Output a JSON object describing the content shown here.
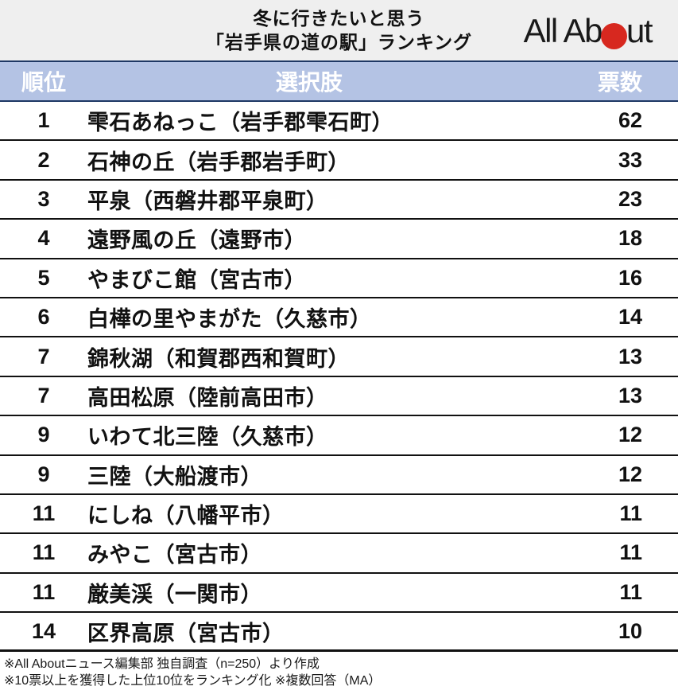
{
  "banner": {
    "title_line1": "冬に行きたいと思う",
    "title_line2": "「岩手県の道の駅」ランキング",
    "logo": {
      "text_left": "All Ab",
      "text_right": "ut",
      "dot_icon": "red-circle",
      "dot_color": "#d7281f"
    }
  },
  "table": {
    "columns": [
      "順位",
      "選択肢",
      "票数"
    ],
    "rows": [
      {
        "rank": "1",
        "name": "雫石あねっこ（岩手郡雫石町）",
        "votes": "62"
      },
      {
        "rank": "2",
        "name": "石神の丘（岩手郡岩手町）",
        "votes": "33"
      },
      {
        "rank": "3",
        "name": "平泉（西磐井郡平泉町）",
        "votes": "23"
      },
      {
        "rank": "4",
        "name": "遠野風の丘（遠野市）",
        "votes": "18"
      },
      {
        "rank": "5",
        "name": "やまびこ館（宮古市）",
        "votes": "16"
      },
      {
        "rank": "6",
        "name": "白樺の里やまがた（久慈市）",
        "votes": "14"
      },
      {
        "rank": "7",
        "name": "錦秋湖（和賀郡西和賀町）",
        "votes": "13"
      },
      {
        "rank": "7",
        "name": "高田松原（陸前高田市）",
        "votes": "13"
      },
      {
        "rank": "9",
        "name": "いわて北三陸（久慈市）",
        "votes": "12"
      },
      {
        "rank": "9",
        "name": "三陸（大船渡市）",
        "votes": "12"
      },
      {
        "rank": "11",
        "name": "にしね（八幡平市）",
        "votes": "11"
      },
      {
        "rank": "11",
        "name": "みやこ（宮古市）",
        "votes": "11"
      },
      {
        "rank": "11",
        "name": "厳美渓（一関市）",
        "votes": "11"
      },
      {
        "rank": "14",
        "name": "区界高原（宮古市）",
        "votes": "10"
      }
    ]
  },
  "footnote": {
    "line1": "※All Aboutニュース編集部 独自調査（n=250）より作成",
    "line2": "※10票以上を獲得した上位10位をランキング化 ※複数回答（MA）"
  },
  "colors": {
    "banner_background": "#efefef",
    "header_row_background": "#b4c3e4",
    "header_row_text": "#ffffff",
    "header_border_navy": "#1f3864",
    "row_divider": "#111111",
    "logo_dot_red": "#d7281f"
  },
  "chart_data": {
    "type": "table",
    "title": "冬に行きたいと思う「岩手県の道の駅」ランキング",
    "columns": [
      "順位",
      "選択肢",
      "票数"
    ],
    "categories": [
      "雫石あねっこ（岩手郡雫石町）",
      "石神の丘（岩手郡岩手町）",
      "平泉（西磐井郡平泉町）",
      "遠野風の丘（遠野市）",
      "やまびこ館（宮古市）",
      "白樺の里やまがた（久慈市）",
      "錦秋湖（和賀郡西和賀町）",
      "高田松原（陸前高田市）",
      "いわて北三陸（久慈市）",
      "三陸（大船渡市）",
      "にしね（八幡平市）",
      "みやこ（宮古市）",
      "厳美渓（一関市）",
      "区界高原（宮古市）"
    ],
    "ranks": [
      1,
      2,
      3,
      4,
      5,
      6,
      7,
      7,
      9,
      9,
      11,
      11,
      11,
      14
    ],
    "values": [
      62,
      33,
      23,
      18,
      16,
      14,
      13,
      13,
      12,
      12,
      11,
      11,
      11,
      10
    ],
    "source_note": "All Aboutニュース編集部 独自調査（n=250）より作成、10票以上を獲得した上位10位をランキング化、複数回答（MA）"
  }
}
